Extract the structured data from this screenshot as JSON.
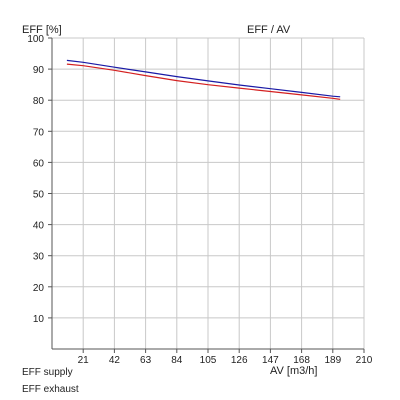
{
  "chart_data": {
    "type": "line",
    "title": "EFF / AV",
    "ylabel": "EFF [%]",
    "xlabel": "AV [m3/h]",
    "xlim": [
      0,
      210
    ],
    "ylim": [
      0,
      100
    ],
    "x_ticks": [
      21,
      42,
      63,
      84,
      105,
      126,
      147,
      168,
      189,
      210
    ],
    "y_ticks": [
      10,
      20,
      30,
      40,
      50,
      60,
      70,
      80,
      90,
      100
    ],
    "grid": true,
    "legend": "bottom-left",
    "series": [
      {
        "name": "EFF supply",
        "color": "#1a1aa6",
        "x": [
          10,
          21,
          42,
          63,
          84,
          105,
          126,
          147,
          168,
          189,
          194
        ],
        "y": [
          92.8,
          92.2,
          90.6,
          89.1,
          87.6,
          86.2,
          84.9,
          83.7,
          82.5,
          81.3,
          81.1
        ]
      },
      {
        "name": "EFF exhaust",
        "color": "#d42020",
        "x": [
          10,
          21,
          42,
          63,
          84,
          105,
          126,
          147,
          168,
          189,
          194
        ],
        "y": [
          91.6,
          91.1,
          89.6,
          87.9,
          86.3,
          85.0,
          83.9,
          82.8,
          81.7,
          80.6,
          80.3
        ]
      }
    ]
  }
}
